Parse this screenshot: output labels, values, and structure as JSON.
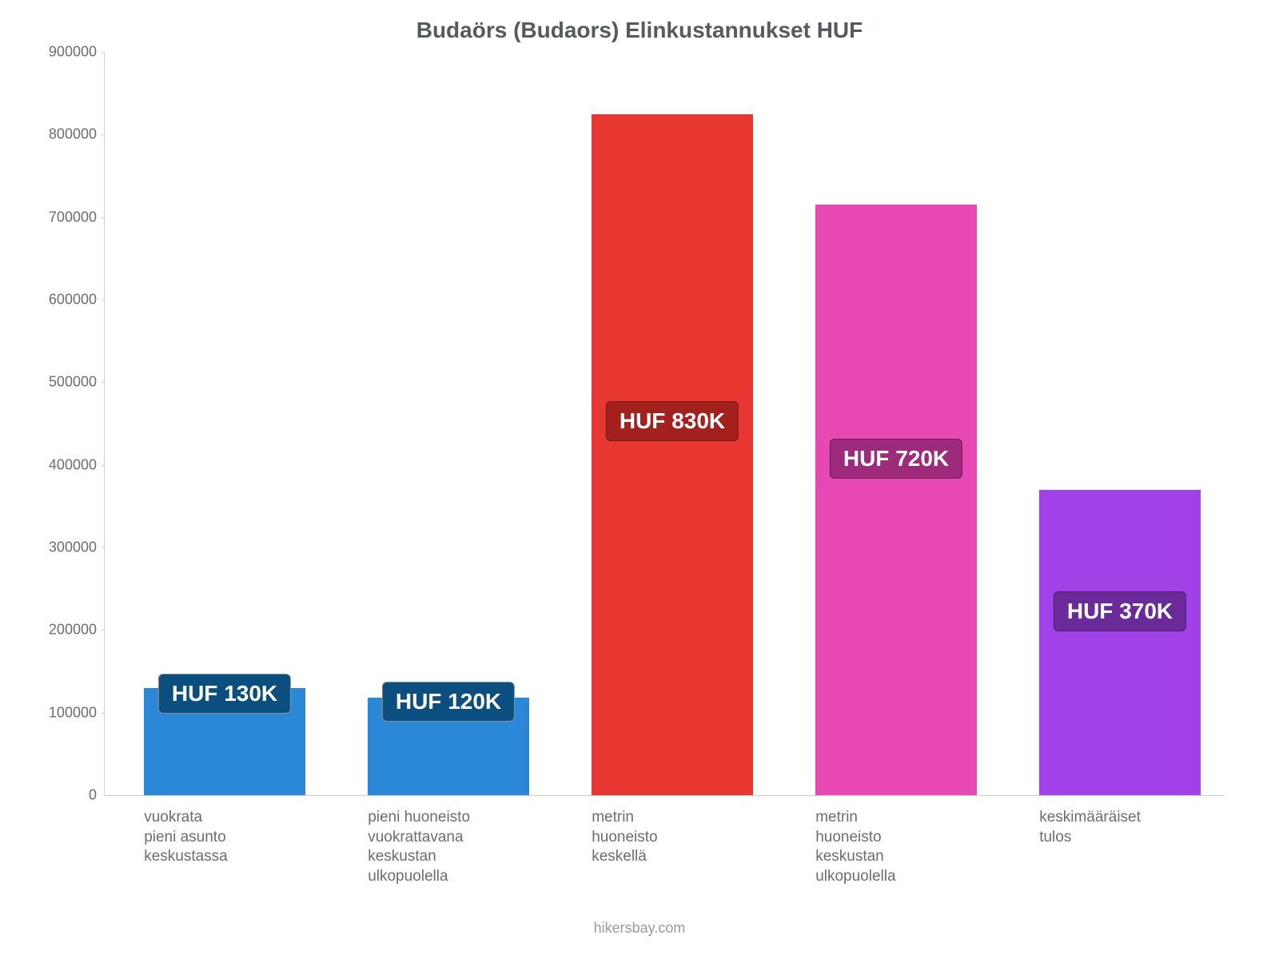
{
  "chart": {
    "type": "bar",
    "title": "Budaörs (Budaors) Elinkustannukset HUF",
    "title_fontsize": 28,
    "title_color": "#555a5c",
    "background_color": "#ffffff",
    "yaxis": {
      "min": 0,
      "max": 900000,
      "step": 100000,
      "tick_fontsize": 18,
      "tick_color": "#6d6d6d",
      "axis_color": "#cfcfcf"
    },
    "bar_gap_ratio": 0.28,
    "dlabel_fontsize": 28,
    "xlabel_fontsize": 19,
    "xlabel_color": "#6d6d6d",
    "bars": [
      {
        "label_lines": [
          "vuokrata",
          "pieni asunto",
          "keskustassa"
        ],
        "value": 130000,
        "value_label": "HUF 130K",
        "fill": "#2b88d9",
        "dlabel_bg": "#0b4e80",
        "dlabel_border": "#8e8e8e",
        "dlabel_yvalue": 120000
      },
      {
        "label_lines": [
          "pieni huoneisto",
          "vuokrattavana",
          "keskustan",
          "ulkopuolella"
        ],
        "value": 118000,
        "value_label": "HUF 120K",
        "fill": "#2b88d9",
        "dlabel_bg": "#0b4e80",
        "dlabel_border": "#8e8e8e",
        "dlabel_yvalue": 110000
      },
      {
        "label_lines": [
          "metrin",
          "huoneisto",
          "keskellä"
        ],
        "value": 825000,
        "value_label": "HUF 830K",
        "fill": "#e83730",
        "dlabel_bg": "#a3201c",
        "dlabel_border": "#7a1815",
        "dlabel_yvalue": 450000
      },
      {
        "label_lines": [
          "metrin",
          "huoneisto",
          "keskustan",
          "ulkopuolella"
        ],
        "value": 715000,
        "value_label": "HUF 720K",
        "fill": "#e748b3",
        "dlabel_bg": "#9d2a7a",
        "dlabel_border": "#6e1c55",
        "dlabel_yvalue": 405000
      },
      {
        "label_lines": [
          "keskimääräiset",
          "tulos"
        ],
        "value": 370000,
        "value_label": "HUF 370K",
        "fill": "#a142e8",
        "dlabel_bg": "#6a2a9a",
        "dlabel_border": "#4a1d6d",
        "dlabel_yvalue": 220000
      }
    ],
    "attribution": "hikersbay.com",
    "attribution_fontsize": 18,
    "attribution_color": "#9a9a9a"
  }
}
